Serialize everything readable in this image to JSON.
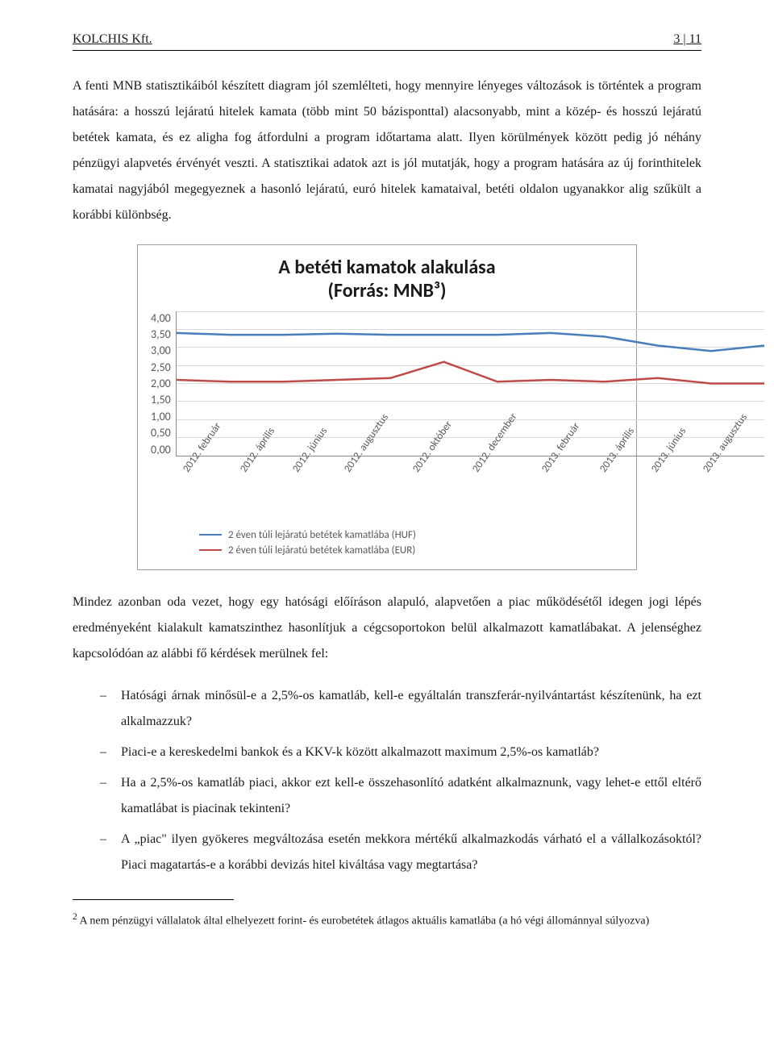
{
  "header": {
    "left": "KOLCHIS Kft.",
    "right": "3 | 11"
  },
  "paragraphs": {
    "p1": "A fenti MNB statisztikáiból készített diagram jól szemlélteti, hogy mennyire lényeges változások is történtek a program hatására: a hosszú lejáratú hitelek kamata (több mint 50 bázisponttal) alacsonyabb, mint a közép- és hosszú lejáratú betétek kamata, és ez aligha fog átfordulni a program időtartama alatt. Ilyen körülmények között pedig jó néhány pénzügyi alapvetés érvényét veszti. A statisztikai adatok azt is jól mutatják, hogy a program hatására az új forinthitelek kamatai nagyjából megegyeznek a hasonló lejáratú, euró hitelek kamataival, betéti oldalon ugyanakkor alig szűkült a korábbi különbség.",
    "p2": "Mindez azonban oda vezet, hogy egy hatósági előíráson alapuló, alapvetően a piac működésétől idegen jogi lépés eredményeként kialakult kamatszinthez hasonlítjuk a cégcsoportokon belül alkalmazott kamatlábakat. A jelenséghez kapcsolódóan az alábbi fő kérdések merülnek fel:"
  },
  "bullets": [
    "Hatósági árnak minősül-e a 2,5%-os kamatláb, kell-e egyáltalán transzferár-nyilvántartást készítenünk, ha ezt alkalmazzuk?",
    "Piaci-e a kereskedelmi bankok és a KKV-k között alkalmazott maximum 2,5%-os kamatláb?",
    "Ha a 2,5%-os kamatláb piaci, akkor ezt kell-e összehasonlító adatként alkalmaznunk, vagy lehet-e ettől eltérő kamatlábat is piacinak tekinteni?",
    "A „piac\" ilyen gyökeres megváltozása esetén mekkora mértékű alkalmazkodás várható el a vállalkozásoktól? Piaci magatartás-e a korábbi devizás hitel kiváltása vagy megtartása?"
  ],
  "footnote": {
    "marker": "2",
    "text": " A nem pénzügyi vállalatok által elhelyezett forint- és eurobetétek átlagos aktuális kamatlába (a hó végi állománnyal súlyozva)"
  },
  "chart": {
    "type": "line",
    "title_line1": "A betéti kamatok alakulása",
    "title_line2": "(Forrás: MNB³)",
    "title_fontsize": 24,
    "x_labels": [
      "2012. február",
      "2012. április",
      "2012. június",
      "2012. augusztus",
      "2012. október",
      "2012. december",
      "2013. február",
      "2013. április",
      "2013. június",
      "2013. augusztus"
    ],
    "y_ticks": [
      "4,00",
      "3,50",
      "3,00",
      "2,50",
      "2,00",
      "1,50",
      "1,00",
      "0,50",
      "0,00"
    ],
    "ylim": [
      0,
      4
    ],
    "ytick_step": 0.5,
    "background_color": "#ffffff",
    "grid_color": "#d9d9d9",
    "axis_color": "#888888",
    "label_color": "#595959",
    "label_fontsize": 13,
    "line_width": 2.5,
    "series": [
      {
        "name": "2 éven túli lejáratú betétek kamatlába (HUF)",
        "color": "#4a7ebb",
        "values": [
          3.4,
          3.35,
          3.35,
          3.38,
          3.35,
          3.35,
          3.35,
          3.4,
          3.3,
          3.05,
          2.9,
          3.05
        ]
      },
      {
        "name": "2 éven túli lejáratú betétek kamatlába (EUR)",
        "color": "#be4b48",
        "values": [
          2.1,
          2.05,
          2.05,
          2.1,
          2.15,
          2.6,
          2.05,
          2.1,
          2.05,
          2.15,
          2.0,
          2.0
        ]
      }
    ]
  }
}
